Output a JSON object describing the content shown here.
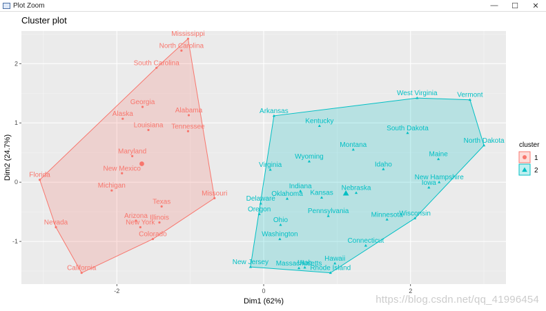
{
  "window": {
    "title": "Plot Zoom",
    "minimize_glyph": "—",
    "maximize_glyph": "☐",
    "close_glyph": "✕"
  },
  "watermark": "https://blog.csdn.net/qq_41996454",
  "chart_data": {
    "type": "scatter",
    "title": "Cluster plot",
    "xlabel": "Dim1 (62%)",
    "ylabel": "Dim2 (24.7%)",
    "xlim": [
      -3.3,
      3.3
    ],
    "ylim": [
      -1.72,
      2.55
    ],
    "xticks": [
      -2,
      0,
      2
    ],
    "yticks": [
      -1,
      0,
      1,
      2
    ],
    "grid": true,
    "legend": {
      "title": "cluster",
      "position": "right",
      "entries": [
        {
          "label": "1",
          "color": "#F8766D",
          "shape": "circle"
        },
        {
          "label": "2",
          "color": "#00BFC4",
          "shape": "triangle"
        }
      ]
    },
    "series": [
      {
        "name": "1",
        "color": "#F8766D",
        "points": [
          {
            "label": "Mississippi",
            "x": -1.03,
            "y": 2.42
          },
          {
            "label": "North Carolina",
            "x": -1.12,
            "y": 2.22
          },
          {
            "label": "South Carolina",
            "x": -1.46,
            "y": 1.93
          },
          {
            "label": "Georgia",
            "x": -1.65,
            "y": 1.27
          },
          {
            "label": "Alabama",
            "x": -1.02,
            "y": 1.13
          },
          {
            "label": "Alaska",
            "x": -1.92,
            "y": 1.07
          },
          {
            "label": "Louisiana",
            "x": -1.57,
            "y": 0.88
          },
          {
            "label": "Tennessee",
            "x": -1.03,
            "y": 0.86
          },
          {
            "label": "Maryland",
            "x": -1.79,
            "y": 0.44
          },
          {
            "label": "New Mexico",
            "x": -1.93,
            "y": 0.15
          },
          {
            "label": "Florida",
            "x": -3.05,
            "y": 0.04
          },
          {
            "label": "Michigan",
            "x": -2.07,
            "y": -0.14
          },
          {
            "label": "Missouri",
            "x": -0.67,
            "y": -0.27
          },
          {
            "label": "Texas",
            "x": -1.39,
            "y": -0.41
          },
          {
            "label": "Illinois",
            "x": -1.42,
            "y": -0.68
          },
          {
            "label": "Arizona",
            "x": -1.74,
            "y": -0.65
          },
          {
            "label": "New York",
            "x": -1.68,
            "y": -0.76
          },
          {
            "label": "Colorado",
            "x": -1.51,
            "y": -0.96
          },
          {
            "label": "Nevada",
            "x": -2.83,
            "y": -0.76
          },
          {
            "label": "California",
            "x": -2.48,
            "y": -1.53
          }
        ]
      },
      {
        "name": "2",
        "color": "#00BFC4",
        "points": [
          {
            "label": "Arkansas",
            "x": 0.14,
            "y": 1.12
          },
          {
            "label": "West Virginia",
            "x": 2.09,
            "y": 1.42
          },
          {
            "label": "Vermont",
            "x": 2.81,
            "y": 1.39
          },
          {
            "label": "Kentucky",
            "x": 0.76,
            "y": 0.95
          },
          {
            "label": "South Dakota",
            "x": 1.96,
            "y": 0.83
          },
          {
            "label": "North Dakota",
            "x": 3.0,
            "y": 0.62
          },
          {
            "label": "Montana",
            "x": 1.22,
            "y": 0.55
          },
          {
            "label": "Wyoming",
            "x": 0.62,
            "y": 0.35
          },
          {
            "label": "Maine",
            "x": 2.38,
            "y": 0.39
          },
          {
            "label": "Idaho",
            "x": 1.63,
            "y": 0.22
          },
          {
            "label": "Virginia",
            "x": 0.09,
            "y": 0.21
          },
          {
            "label": "New Hampshire",
            "x": 2.39,
            "y": 0.0
          },
          {
            "label": "Iowa",
            "x": 2.25,
            "y": -0.09
          },
          {
            "label": "Indiana",
            "x": 0.5,
            "y": -0.15
          },
          {
            "label": "Nebraska",
            "x": 1.26,
            "y": -0.18
          },
          {
            "label": "Kansas",
            "x": 0.79,
            "y": -0.26
          },
          {
            "label": "Oklahoma",
            "x": 0.32,
            "y": -0.28
          },
          {
            "label": "Delaware",
            "x": -0.04,
            "y": -0.36
          },
          {
            "label": "Pennsylvania",
            "x": 0.88,
            "y": -0.57
          },
          {
            "label": "Wisconsin",
            "x": 2.06,
            "y": -0.61
          },
          {
            "label": "Minnesota",
            "x": 1.68,
            "y": -0.63
          },
          {
            "label": "Oregon",
            "x": -0.06,
            "y": -0.54
          },
          {
            "label": "Ohio",
            "x": 0.23,
            "y": -0.72
          },
          {
            "label": "Washington",
            "x": 0.22,
            "y": -0.96
          },
          {
            "label": "Connecticut",
            "x": 1.39,
            "y": -1.07
          },
          {
            "label": "New Jersey",
            "x": -0.18,
            "y": -1.43
          },
          {
            "label": "Massachusetts",
            "x": 0.48,
            "y": -1.45
          },
          {
            "label": "Rhode Island",
            "x": 0.91,
            "y": -1.53
          },
          {
            "label": "Utah",
            "x": 0.56,
            "y": -1.44
          },
          {
            "label": "Hawaii",
            "x": 0.97,
            "y": -1.37
          }
        ]
      }
    ],
    "centroids": [
      {
        "series": "1",
        "x": -1.66,
        "y": 0.31
      },
      {
        "series": "2",
        "x": 1.12,
        "y": -0.19
      }
    ]
  }
}
